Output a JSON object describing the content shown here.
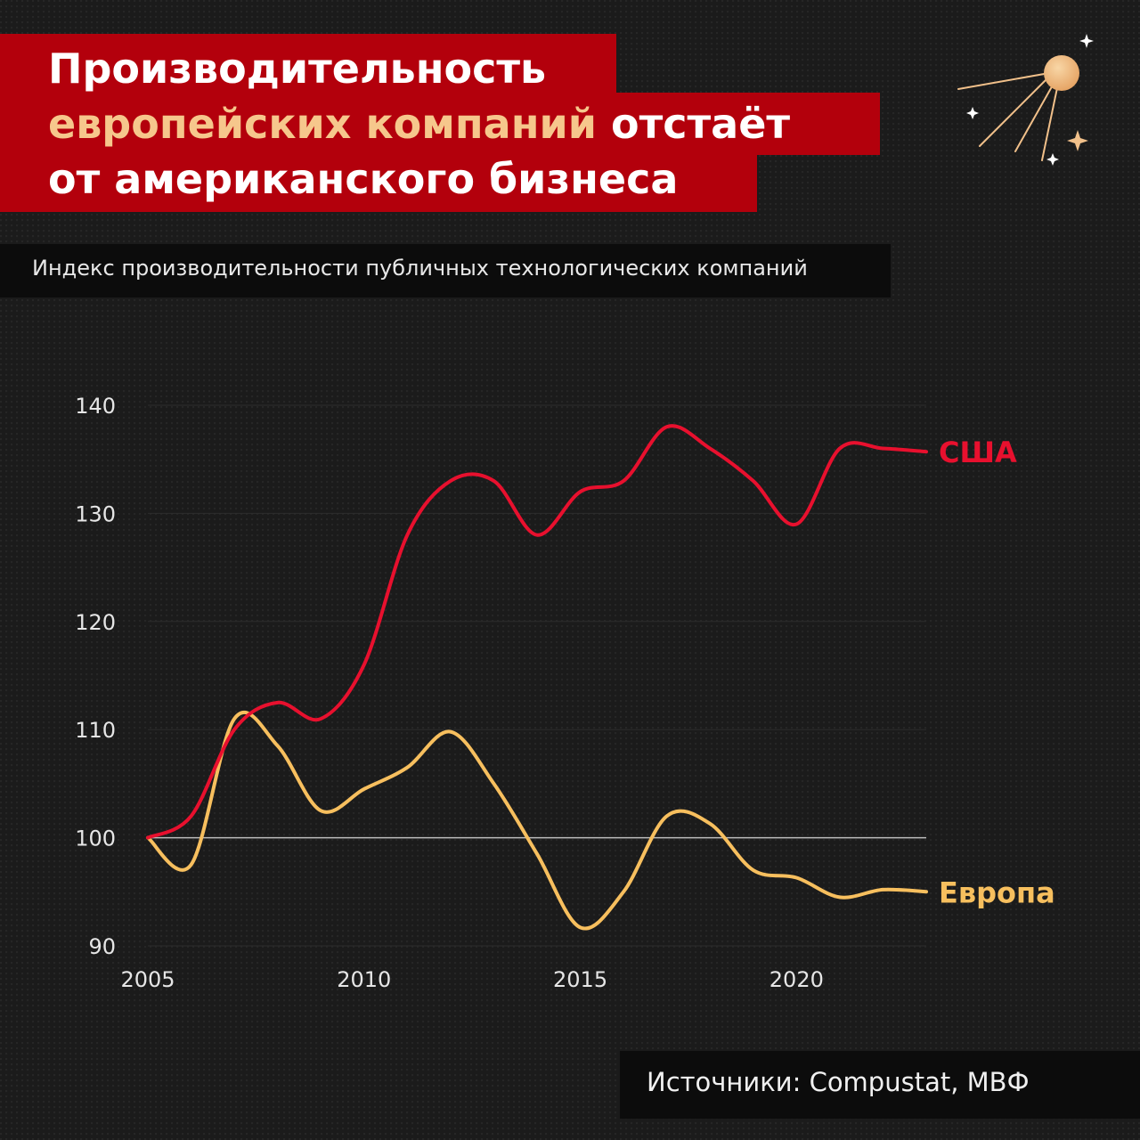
{
  "title": {
    "line1": "Производительность",
    "line2_accent": "европейских компаний",
    "line2_rest": " отстаёт",
    "line3": "от американского бизнеса"
  },
  "subtitle": "Индекс производительности публичных технологических компаний",
  "source": "Источники: Compustat, МВФ",
  "colors": {
    "title_band": "#b3000c",
    "accent": "#f6c78c",
    "usa": "#e8102e",
    "europe": "#f7bf5e",
    "baseline": "#bdbdbd"
  },
  "icons": [
    "sputnik-icon",
    "sparkle-icon"
  ],
  "chart_data": {
    "type": "line",
    "title": "",
    "xlabel": "",
    "ylabel": "",
    "xlim": [
      2005,
      2023
    ],
    "ylim": [
      90,
      140
    ],
    "xticks": [
      2005,
      2010,
      2015,
      2020
    ],
    "yticks": [
      90,
      100,
      110,
      120,
      130,
      140
    ],
    "baseline": 100,
    "grid": true,
    "series": [
      {
        "name": "США",
        "x": [
          2005,
          2006,
          2007,
          2008,
          2009,
          2010,
          2011,
          2012,
          2013,
          2014,
          2015,
          2016,
          2017,
          2018,
          2019,
          2020,
          2021,
          2022,
          2023
        ],
        "values": [
          100,
          102,
          110,
          112.5,
          111,
          116,
          128,
          133,
          133,
          128,
          132,
          133,
          138,
          136,
          133,
          129,
          136,
          136,
          135.7
        ]
      },
      {
        "name": "Европа",
        "x": [
          2005,
          2006,
          2007,
          2008,
          2009,
          2010,
          2011,
          2012,
          2013,
          2014,
          2015,
          2016,
          2017,
          2018,
          2019,
          2020,
          2021,
          2022,
          2023
        ],
        "values": [
          100,
          97.5,
          111,
          108.5,
          102.5,
          104.5,
          106.5,
          109.8,
          105,
          98.5,
          91.7,
          95,
          102,
          101.3,
          97,
          96.3,
          94.5,
          95.2,
          95
        ]
      }
    ]
  }
}
